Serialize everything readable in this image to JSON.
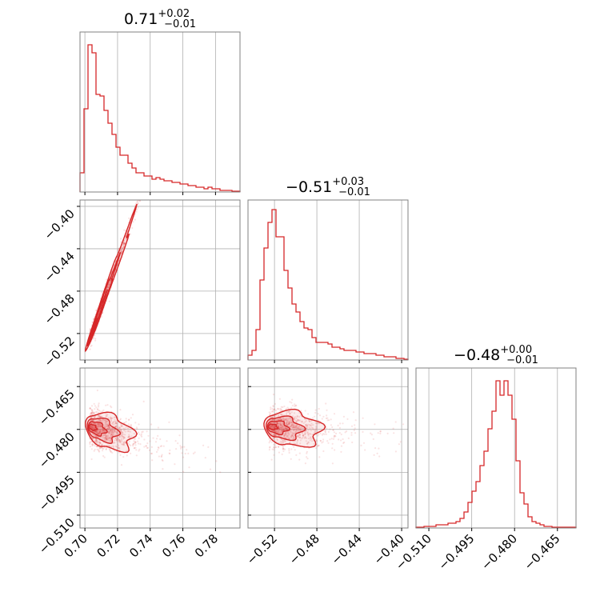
{
  "colors": {
    "series": "#d62728",
    "grid": "#b0b0b0",
    "frame": "#808080"
  },
  "chart_data": {
    "type": "corner",
    "parameters": [
      {
        "title": {
          "value": "0.71",
          "plus": "+0.02",
          "minus": "−0.01"
        },
        "range": [
          0.697,
          0.795
        ],
        "ticks": [
          0.7,
          0.72,
          0.74,
          0.76,
          0.78
        ],
        "tick_labels": [
          "0.70",
          "0.72",
          "0.74",
          "0.76",
          "0.78"
        ],
        "hist": [
          0.12,
          0.52,
          0.92,
          0.87,
          0.61,
          0.6,
          0.51,
          0.43,
          0.36,
          0.28,
          0.23,
          0.23,
          0.18,
          0.15,
          0.12,
          0.12,
          0.1,
          0.1,
          0.08,
          0.09,
          0.08,
          0.07,
          0.07,
          0.06,
          0.06,
          0.05,
          0.05,
          0.04,
          0.04,
          0.03,
          0.03,
          0.02,
          0.03,
          0.02,
          0.02,
          0.01,
          0.01,
          0.01,
          0.005,
          0.005
        ]
      },
      {
        "title": {
          "value": "−0.51",
          "plus": "+0.03",
          "minus": "−0.01"
        },
        "range": [
          -0.545,
          -0.394
        ],
        "ticks": [
          -0.52,
          -0.48,
          -0.44,
          -0.4
        ],
        "tick_labels": [
          "−0.52",
          "−0.48",
          "−0.44",
          "−0.40"
        ],
        "hist": [
          0.03,
          0.06,
          0.19,
          0.5,
          0.7,
          0.86,
          0.94,
          0.77,
          0.77,
          0.56,
          0.45,
          0.35,
          0.3,
          0.24,
          0.2,
          0.19,
          0.14,
          0.11,
          0.11,
          0.11,
          0.1,
          0.08,
          0.08,
          0.07,
          0.06,
          0.06,
          0.06,
          0.05,
          0.05,
          0.04,
          0.04,
          0.04,
          0.03,
          0.03,
          0.02,
          0.02,
          0.02,
          0.01,
          0.01,
          0.005
        ]
      },
      {
        "title": {
          "value": "−0.48",
          "plus": "+0.00",
          "minus": "−0.01"
        },
        "range": [
          -0.5145,
          -0.4585
        ],
        "ticks": [
          -0.51,
          -0.495,
          -0.48,
          -0.465
        ],
        "tick_labels": [
          "−0.510",
          "−0.495",
          "−0.480",
          "−0.465"
        ],
        "hist": [
          0.005,
          0.005,
          0.01,
          0.01,
          0.01,
          0.02,
          0.02,
          0.02,
          0.03,
          0.03,
          0.04,
          0.06,
          0.1,
          0.16,
          0.23,
          0.29,
          0.39,
          0.48,
          0.62,
          0.73,
          0.92,
          0.83,
          0.92,
          0.83,
          0.68,
          0.42,
          0.22,
          0.15,
          0.07,
          0.04,
          0.03,
          0.02,
          0.01,
          0.01,
          0.005,
          0.005,
          0.005,
          0.005,
          0.005,
          0.005
        ]
      }
    ],
    "correlations": [
      {
        "x": 0,
        "y": 1,
        "slope": 4.33,
        "center": [
          0.703,
          -0.525
        ],
        "spread_x": 0.012,
        "noise": 0.004
      },
      {
        "x": 0,
        "y": 2,
        "slope": -0.15,
        "center": [
          0.703,
          -0.479
        ],
        "spread_x": 0.012,
        "noise": 0.0035
      },
      {
        "x": 1,
        "y": 2,
        "slope": -0.035,
        "center": [
          -0.525,
          -0.479
        ],
        "spread_x": 0.022,
        "noise": 0.0035
      }
    ],
    "grid": true,
    "legend": "none"
  }
}
